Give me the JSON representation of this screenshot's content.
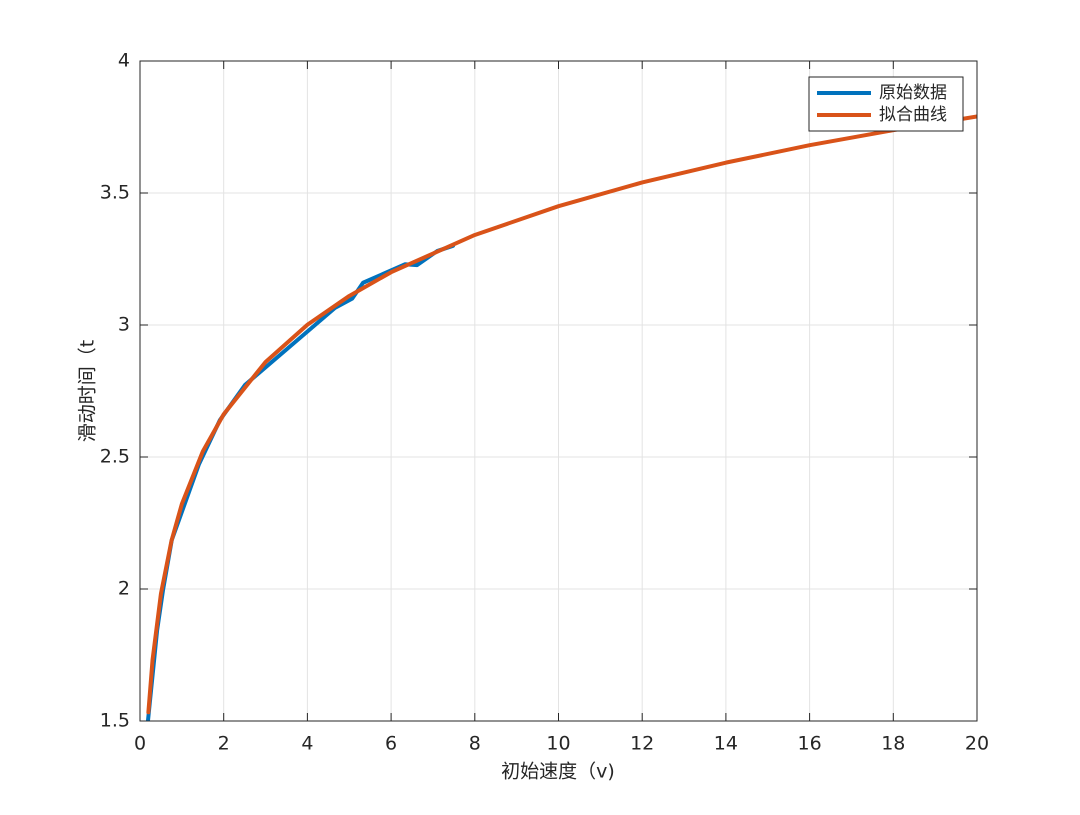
{
  "chart_data": {
    "type": "line",
    "x_label": "初始速度（v)",
    "y_label": "滑动时间（t",
    "xlim": [
      0,
      20
    ],
    "xticks": [
      0,
      2,
      4,
      6,
      8,
      10,
      12,
      14,
      16,
      18,
      20
    ],
    "ylim": [
      1.5,
      4
    ],
    "yticks": [
      1.5,
      2,
      2.5,
      3,
      3.5,
      4
    ],
    "grid": true,
    "legend": "upper-right",
    "series": [
      {
        "name": "原始数据",
        "color": "#0072BD",
        "x": [
          0.19,
          0.41,
          0.55,
          0.76,
          1.41,
          1.91,
          2.51,
          4.66,
          5.07,
          5.33,
          6.33,
          6.62,
          7.1,
          7.48
        ],
        "values": [
          1.5,
          1.845,
          1.996,
          2.186,
          2.473,
          2.64,
          2.773,
          3.065,
          3.1,
          3.16,
          3.23,
          3.227,
          3.28,
          3.3
        ]
      },
      {
        "name": "拟合曲线",
        "color": "#D95319",
        "x": [
          0.2,
          0.3,
          0.5,
          0.75,
          1,
          1.5,
          2,
          3,
          4,
          5,
          6,
          8,
          10,
          12,
          14,
          16,
          18,
          20
        ],
        "values": [
          1.533,
          1.732,
          1.982,
          2.181,
          2.322,
          2.521,
          2.662,
          2.86,
          3.001,
          3.11,
          3.2,
          3.341,
          3.45,
          3.54,
          3.615,
          3.681,
          3.738,
          3.79
        ]
      }
    ]
  }
}
